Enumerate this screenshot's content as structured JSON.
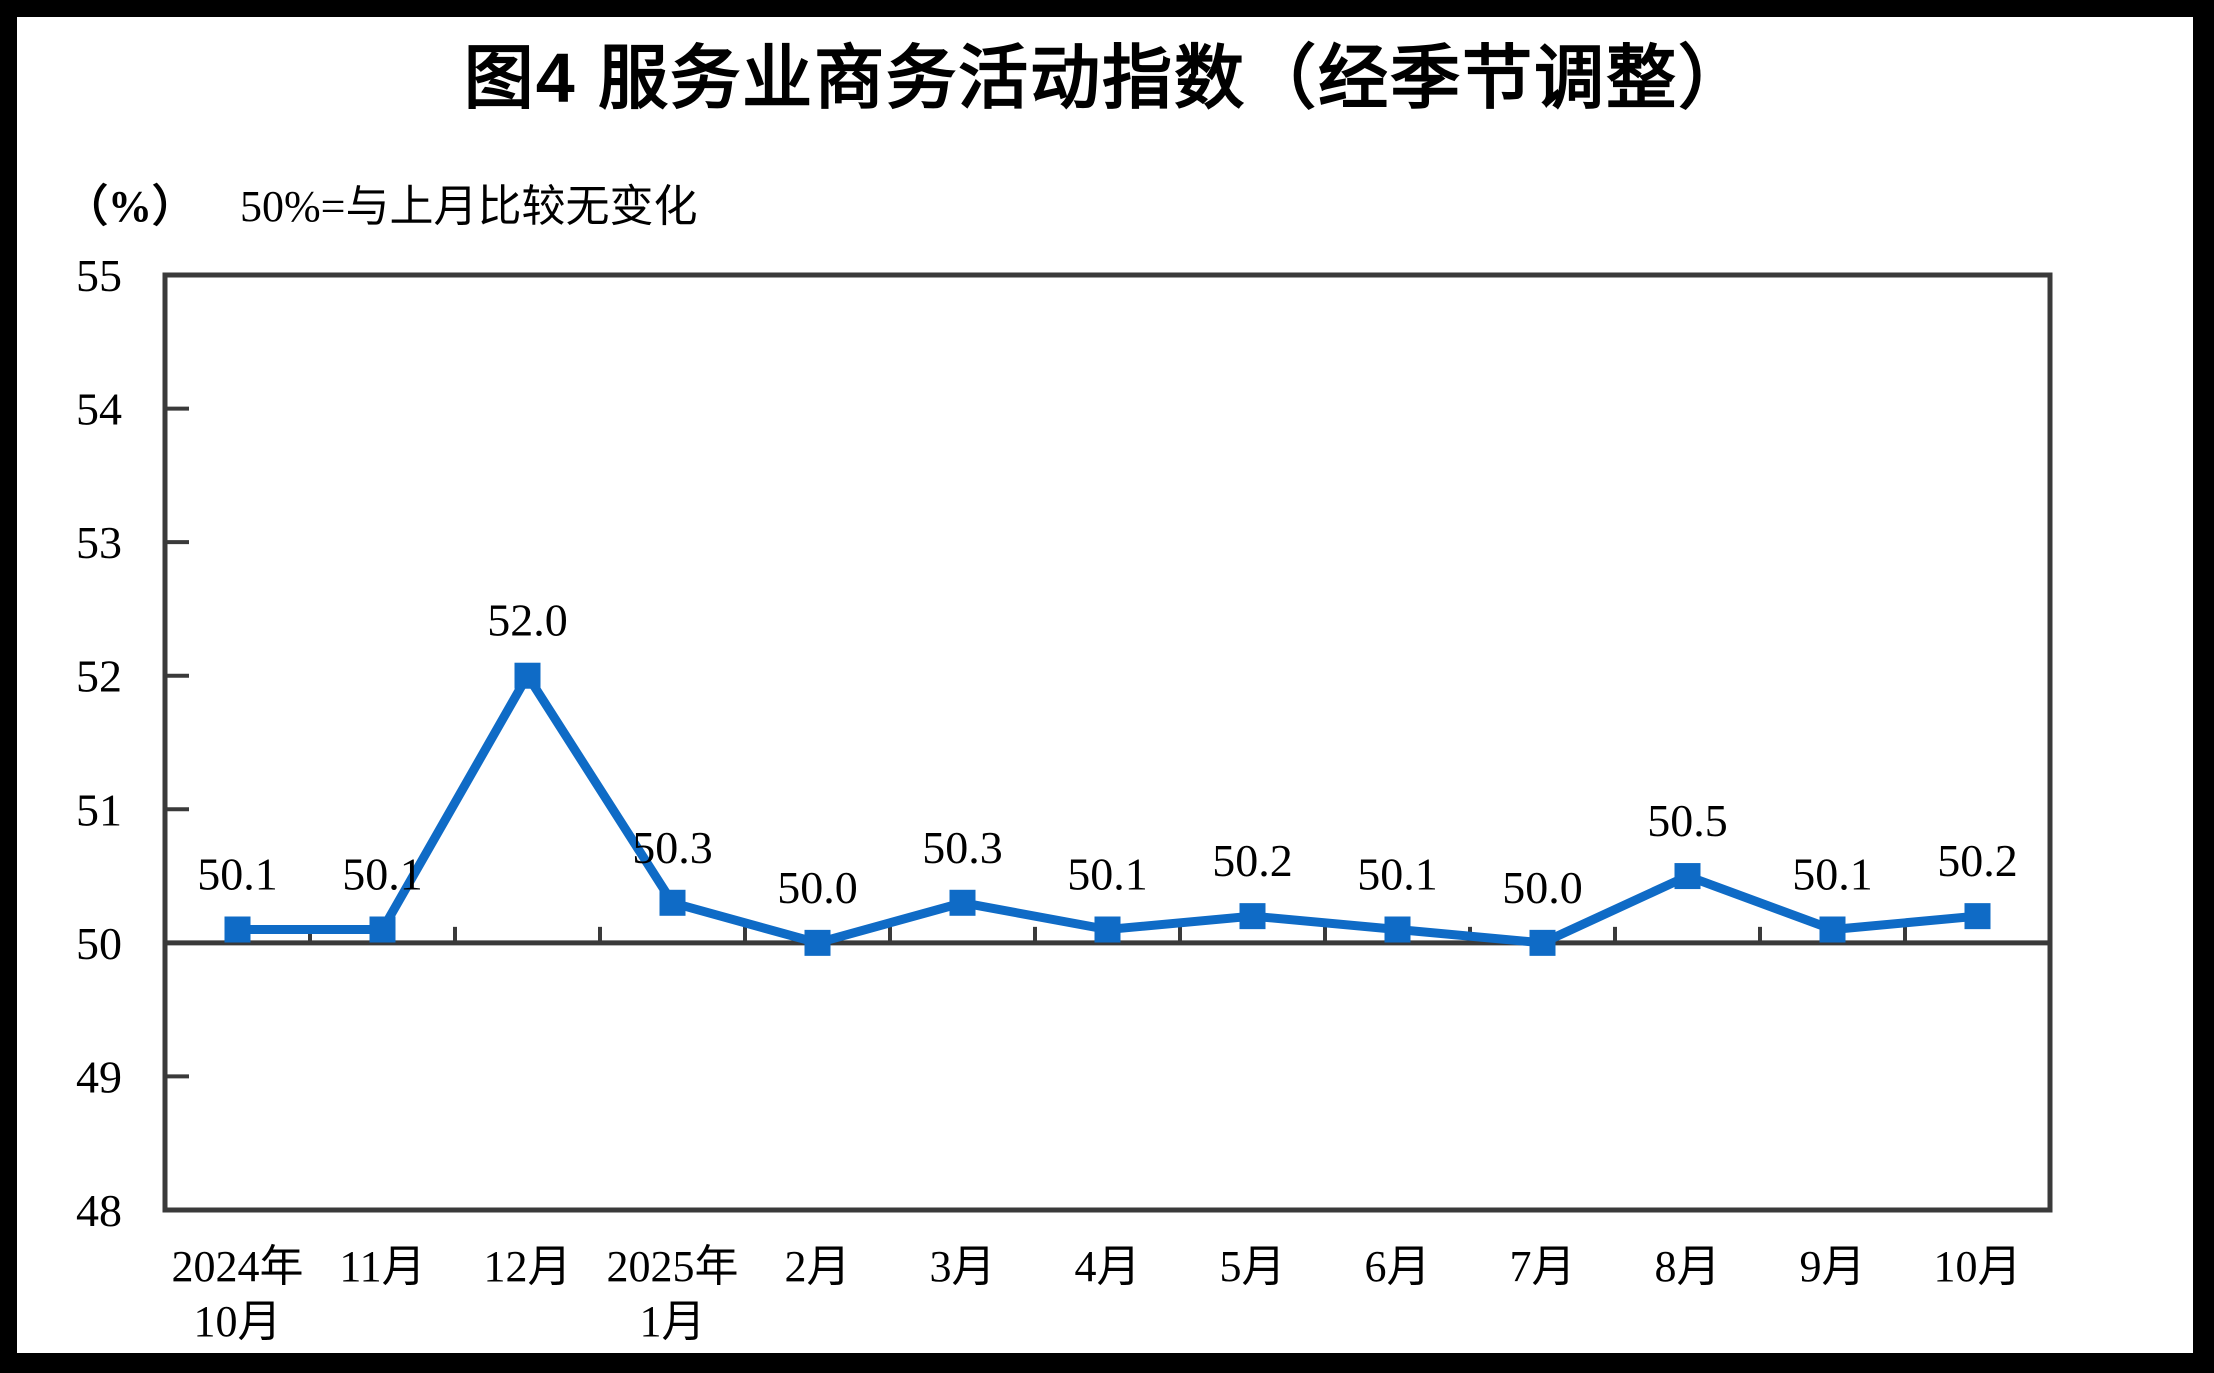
{
  "page": {
    "title": "图4 服务业商务活动指数（经季节调整）",
    "unit_label": "（%）",
    "note": "50%=与上月比较无变化"
  },
  "colors": {
    "line": "#0F6BC6",
    "axis": "#3A3A3A",
    "text": "#000000",
    "frame": "#000000",
    "background": "#FFFFFF"
  },
  "chart_data": {
    "type": "line",
    "title": "图4 服务业商务活动指数（经季节调整）",
    "ylabel": "（%）",
    "note": "50%=与上月比较无变化",
    "categories": [
      "2024年10月",
      "11月",
      "12月",
      "2025年1月",
      "2月",
      "3月",
      "4月",
      "5月",
      "6月",
      "7月",
      "8月",
      "9月",
      "10月"
    ],
    "category_labels": [
      [
        "2024年",
        "10月"
      ],
      [
        "11月"
      ],
      [
        "12月"
      ],
      [
        "2025年",
        "1月"
      ],
      [
        "2月"
      ],
      [
        "3月"
      ],
      [
        "4月"
      ],
      [
        "5月"
      ],
      [
        "6月"
      ],
      [
        "7月"
      ],
      [
        "8月"
      ],
      [
        "9月"
      ],
      [
        "10月"
      ]
    ],
    "series": [
      {
        "name": "服务业商务活动指数",
        "values": [
          50.1,
          50.1,
          52.0,
          50.3,
          50.0,
          50.3,
          50.1,
          50.2,
          50.1,
          50.0,
          50.5,
          50.1,
          50.2
        ]
      }
    ],
    "data_labels": [
      "50.1",
      "50.1",
      "52.0",
      "50.3",
      "50.0",
      "50.3",
      "50.1",
      "50.2",
      "50.1",
      "50.0",
      "50.5",
      "50.1",
      "50.2"
    ],
    "ylim": [
      48,
      55
    ],
    "yticks": [
      48,
      49,
      50,
      51,
      52,
      53,
      54,
      55
    ],
    "reference_line": 50,
    "grid": false,
    "legend": "none",
    "marker": "square"
  }
}
